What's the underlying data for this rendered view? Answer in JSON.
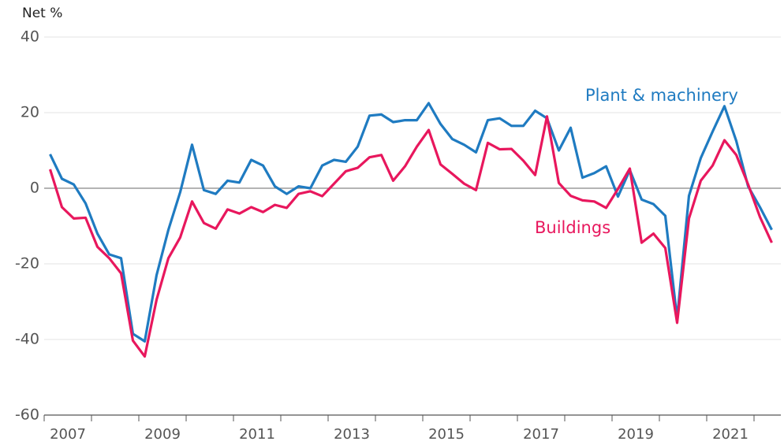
{
  "chart_data": {
    "type": "line",
    "y_label": "Net %",
    "categories": [
      "2007",
      null,
      null,
      null,
      null,
      null,
      null,
      null,
      "2009",
      null,
      null,
      null,
      null,
      null,
      null,
      null,
      "2011",
      null,
      null,
      null,
      null,
      null,
      null,
      null,
      "2013",
      null,
      null,
      null,
      null,
      null,
      null,
      null,
      "2015",
      null,
      null,
      null,
      null,
      null,
      null,
      null,
      "2017",
      null,
      null,
      null,
      null,
      null,
      null,
      null,
      "2019",
      null,
      null,
      null,
      null,
      null,
      null,
      null,
      "2021",
      null,
      null,
      null,
      null,
      null
    ],
    "series": [
      {
        "name": "Plant & machinery",
        "color": "#1f7bc1",
        "values": [
          9,
          2.5,
          1,
          -4,
          -12,
          -17.5,
          -18.5,
          -38.5,
          -40.5,
          -23,
          -11,
          -1,
          11.5,
          -0.5,
          -1.5,
          2,
          1.5,
          7.5,
          6,
          0.5,
          -1.5,
          0.5,
          0,
          6,
          7.5,
          7,
          11,
          19.2,
          19.5,
          17.5,
          18,
          18,
          22.5,
          17,
          13,
          11.5,
          9.5,
          18,
          18.5,
          16.5,
          16.5,
          20.5,
          18.5,
          10,
          16,
          2.8,
          4,
          5.8,
          -2.2,
          4.8,
          -3,
          -4.2,
          -7.3,
          -34.5,
          -2,
          8,
          15,
          21.7,
          12.5,
          0.5,
          -5,
          -11
        ]
      },
      {
        "name": "Buildings",
        "color": "#e8175d",
        "values": [
          5,
          -5,
          -8,
          -7.8,
          -15.5,
          -18.5,
          -22.5,
          -40.3,
          -44.5,
          -29.5,
          -18.5,
          -13,
          -3.5,
          -9.2,
          -10.7,
          -5.6,
          -6.7,
          -5,
          -6.3,
          -4.4,
          -5.2,
          -1.5,
          -0.8,
          -2.1,
          1.2,
          4.5,
          5.4,
          8.2,
          8.8,
          2,
          5.8,
          11,
          15.4,
          6.3,
          3.8,
          1.2,
          -0.5,
          12,
          10.3,
          10.4,
          7.3,
          3.5,
          19,
          1.4,
          -2,
          -3.2,
          -3.5,
          -5.2,
          -0.2,
          5.2,
          -14.4,
          -12,
          -15.8,
          -35.6,
          -8,
          2,
          6,
          12.7,
          8.8,
          1,
          -7.6,
          -14.4
        ]
      }
    ],
    "ylim": [
      -60,
      40
    ],
    "yticks": [
      -60,
      -40,
      -20,
      0,
      20,
      40
    ],
    "grid": true
  }
}
